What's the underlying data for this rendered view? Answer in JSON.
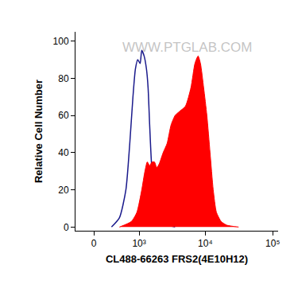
{
  "chart_data": {
    "type": "area",
    "x_label": "CL488-66263 FRS2(4E10H12)",
    "y_label": "Relative Cell Number",
    "annotations": [
      {
        "text": "WWW.PTGLAB.COM"
      }
    ],
    "log": "x",
    "grid": false,
    "xlim": [
      -300,
      120000
    ],
    "xticks": [
      {
        "value": 0,
        "label": "0"
      },
      {
        "value": 1000,
        "label": "10³"
      },
      {
        "value": 10000,
        "label": "10⁴"
      },
      {
        "value": 100000,
        "label": "10⁵"
      }
    ],
    "ylim": [
      -2,
      105
    ],
    "yticks": [
      0,
      20,
      40,
      60,
      80,
      100
    ],
    "series": [
      {
        "type": "line",
        "color": "#1a1a8c",
        "x": [
          286,
          442,
          592,
          696,
          790,
          869,
          950,
          1038,
          1102,
          1202,
          1309,
          1387,
          1467,
          1598,
          1787,
          2056,
          2356,
          2860,
          3559
        ],
        "values": [
          0,
          5,
          20,
          45,
          70,
          85,
          90,
          88,
          95,
          92,
          85,
          75,
          55,
          30,
          20,
          10,
          5,
          1,
          0
        ]
      },
      {
        "type": "area",
        "color": "#ff0000",
        "x": [
          442,
          743,
          921,
          1102,
          1237,
          1348,
          1467,
          1598,
          1738,
          1888,
          2056,
          2356,
          2705,
          3103,
          3559,
          4081,
          5072,
          6130,
          7024,
          7828,
          8486,
          9457,
          10563,
          11773,
          13120,
          14622,
          17179,
          20796,
          31190
        ],
        "values": [
          0,
          3,
          8,
          20,
          30,
          35,
          33,
          35,
          35,
          32,
          34,
          40,
          45,
          55,
          60,
          62,
          65,
          75,
          88,
          92,
          88,
          75,
          60,
          40,
          20,
          8,
          3,
          1,
          0
        ]
      }
    ]
  }
}
